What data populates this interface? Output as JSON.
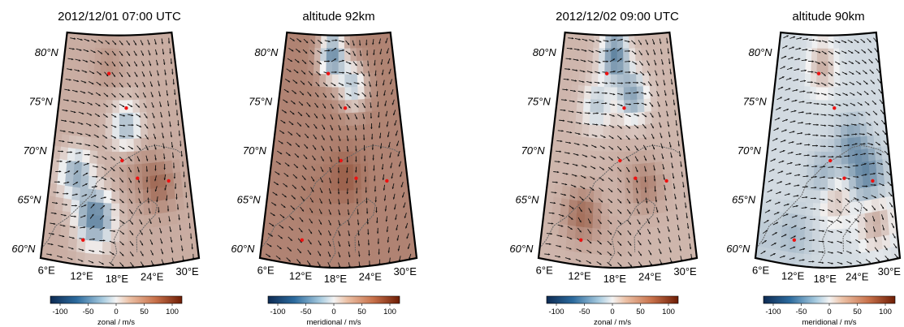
{
  "colors": {
    "neg": "#1b4f7a",
    "mid": "#f4f4f4",
    "pos": "#7a2a0c",
    "arrow": "#111111",
    "coast": "#666666",
    "station": "#ee1111"
  },
  "colorbar": {
    "ticks": [
      "-100",
      "-50",
      "0",
      "50",
      "100"
    ]
  },
  "chart_data": [
    {
      "type": "heatmap",
      "title": "2012/12/01 07:00 UTC",
      "colorbar_label": "zonal / m/s",
      "quantity": "zonal wind",
      "lat_labels": [
        "80°N",
        "75°N",
        "70°N",
        "65°N",
        "60°N"
      ],
      "lon_labels": [
        "6°E",
        "12°E",
        "18°E",
        "24°E",
        "30°E"
      ],
      "lat_range": [
        59,
        82
      ],
      "lon_range": [
        5,
        32
      ],
      "color_range": [
        -120,
        120
      ],
      "sample_values": [
        {
          "lon": 14,
          "lat": 64,
          "value": -70
        },
        {
          "lon": 10,
          "lat": 68,
          "value": -40
        },
        {
          "lon": 20,
          "lat": 73,
          "value": -30
        },
        {
          "lon": 26,
          "lat": 67,
          "value": 70
        },
        {
          "lon": 22,
          "lat": 69,
          "value": 45
        },
        {
          "lon": 16,
          "lat": 79,
          "value": 45
        },
        {
          "lon": 14,
          "lat": 61,
          "value": 20
        }
      ],
      "base_value": 30
    },
    {
      "type": "heatmap",
      "title": "altitude 92km",
      "colorbar_label": "meridional / m/s",
      "quantity": "meridional wind",
      "lat_labels": [
        "80°N",
        "75°N",
        "70°N",
        "65°N",
        "60°N"
      ],
      "lon_labels": [
        "6°E",
        "12°E",
        "18°E",
        "24°E",
        "30°E"
      ],
      "lat_range": [
        59,
        82
      ],
      "lon_range": [
        5,
        32
      ],
      "color_range": [
        -120,
        120
      ],
      "sample_values": [
        {
          "lon": 17,
          "lat": 80,
          "value": -60
        },
        {
          "lon": 22,
          "lat": 77,
          "value": -20
        },
        {
          "lon": 20,
          "lat": 68,
          "value": 80
        },
        {
          "lon": 14,
          "lat": 66,
          "value": 60
        }
      ],
      "base_value": 55
    },
    {
      "type": "heatmap",
      "title": "2012/12/02 09:00 UTC",
      "colorbar_label": "zonal / m/s",
      "quantity": "zonal wind",
      "lat_labels": [
        "80°N",
        "75°N",
        "70°N",
        "65°N",
        "60°N"
      ],
      "lon_labels": [
        "6°E",
        "12°E",
        "18°E",
        "24°E",
        "30°E"
      ],
      "lat_range": [
        59,
        82
      ],
      "lon_range": [
        5,
        32
      ],
      "color_range": [
        -120,
        120
      ],
      "sample_values": [
        {
          "lon": 18,
          "lat": 80,
          "value": -70
        },
        {
          "lon": 22,
          "lat": 76,
          "value": -45
        },
        {
          "lon": 14,
          "lat": 75,
          "value": -20
        },
        {
          "lon": 12,
          "lat": 64,
          "value": 70
        },
        {
          "lon": 24,
          "lat": 67,
          "value": 55
        },
        {
          "lon": 20,
          "lat": 69,
          "value": 30
        },
        {
          "lon": 18,
          "lat": 62,
          "value": 30
        }
      ],
      "base_value": 25
    },
    {
      "type": "heatmap",
      "title": "altitude 90km",
      "colorbar_label": "meridional / m/s",
      "quantity": "meridional wind",
      "lat_labels": [
        "80°N",
        "75°N",
        "70°N",
        "65°N",
        "60°N"
      ],
      "lon_labels": [
        "6°E",
        "12°E",
        "18°E",
        "24°E",
        "30°E"
      ],
      "lat_range": [
        59,
        82
      ],
      "lon_range": [
        5,
        32
      ],
      "color_range": [
        -120,
        120
      ],
      "sample_values": [
        {
          "lon": 17,
          "lat": 79,
          "value": 30
        },
        {
          "lon": 24,
          "lat": 71,
          "value": -55
        },
        {
          "lon": 27,
          "lat": 68,
          "value": -65
        },
        {
          "lon": 18,
          "lat": 68,
          "value": -40
        },
        {
          "lon": 12,
          "lat": 62,
          "value": -30
        },
        {
          "lon": 28,
          "lat": 63,
          "value": 30
        },
        {
          "lon": 20,
          "lat": 66,
          "value": 25
        },
        {
          "lon": 6,
          "lat": 61,
          "value": -20
        }
      ],
      "base_value": -10
    }
  ]
}
